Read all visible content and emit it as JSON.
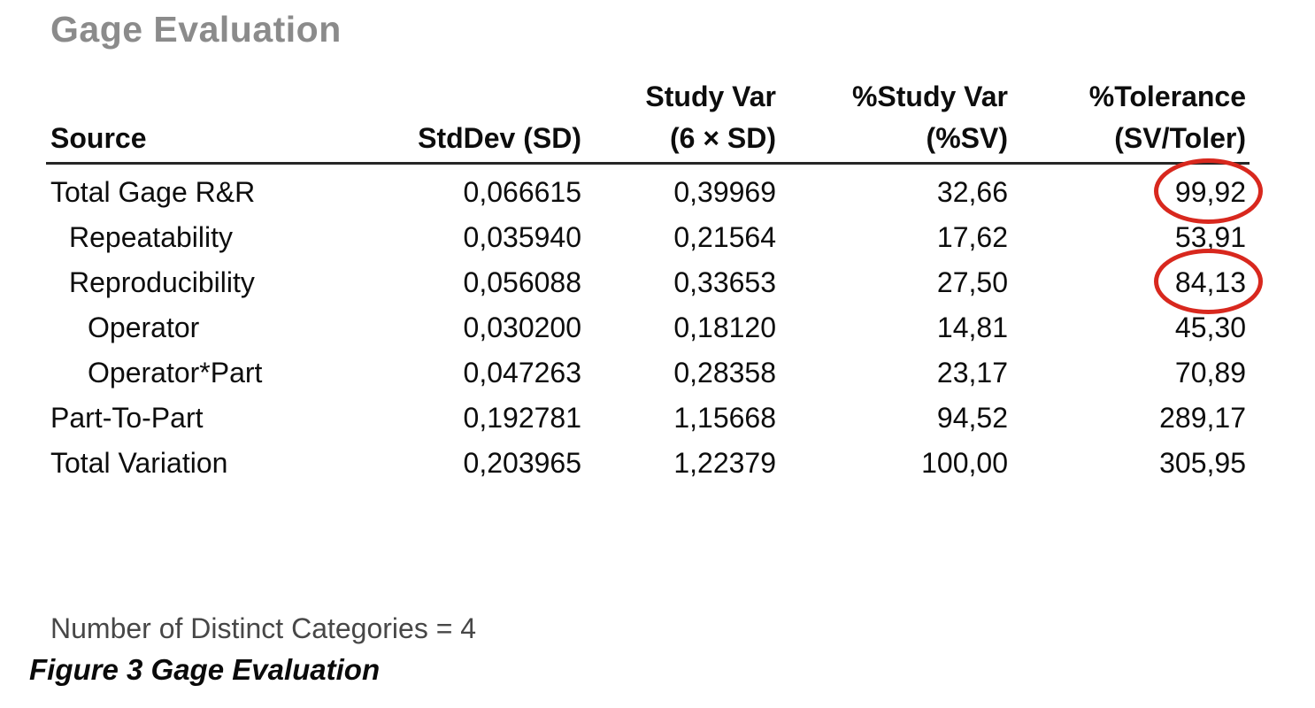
{
  "page": {
    "title": "Gage Evaluation",
    "footer_note": "Number of Distinct Categories = 4",
    "caption": "Figure 3 Gage Evaluation"
  },
  "colors": {
    "title_gray": "#8b8b8b",
    "body_text": "#0d0d0d",
    "footer_note_gray": "#474747",
    "header_rule": "#262626",
    "annotation_red": "#d8281e"
  },
  "table": {
    "columns": [
      {
        "line1": "",
        "line2": "Source"
      },
      {
        "line1": "",
        "line2": "StdDev (SD)"
      },
      {
        "line1": "Study Var",
        "line2": "(6 × SD)"
      },
      {
        "line1": "%Study Var",
        "line2": "(%SV)"
      },
      {
        "line1": "%Tolerance",
        "line2": "(SV/Toler)"
      }
    ],
    "rows": [
      {
        "source": "Total Gage R&R",
        "indent": 0,
        "stddev": "0,066615",
        "study_var": "0,39969",
        "pct_study_var": "32,66",
        "pct_tolerance": "99,92",
        "tolerance_circled": true
      },
      {
        "source": "Repeatability",
        "indent": 1,
        "stddev": "0,035940",
        "study_var": "0,21564",
        "pct_study_var": "17,62",
        "pct_tolerance": "53,91",
        "tolerance_circled": false
      },
      {
        "source": "Reproducibility",
        "indent": 1,
        "stddev": "0,056088",
        "study_var": "0,33653",
        "pct_study_var": "27,50",
        "pct_tolerance": "84,13",
        "tolerance_circled": true
      },
      {
        "source": "Operator",
        "indent": 2,
        "stddev": "0,030200",
        "study_var": "0,18120",
        "pct_study_var": "14,81",
        "pct_tolerance": "45,30",
        "tolerance_circled": false
      },
      {
        "source": "Operator*Part",
        "indent": 2,
        "stddev": "0,047263",
        "study_var": "0,28358",
        "pct_study_var": "23,17",
        "pct_tolerance": "70,89",
        "tolerance_circled": false
      },
      {
        "source": "Part-To-Part",
        "indent": 0,
        "stddev": "0,192781",
        "study_var": "1,15668",
        "pct_study_var": "94,52",
        "pct_tolerance": "289,17",
        "tolerance_circled": false
      },
      {
        "source": "Total Variation",
        "indent": 0,
        "stddev": "0,203965",
        "study_var": "1,22379",
        "pct_study_var": "100,00",
        "pct_tolerance": "305,95",
        "tolerance_circled": false
      }
    ]
  }
}
